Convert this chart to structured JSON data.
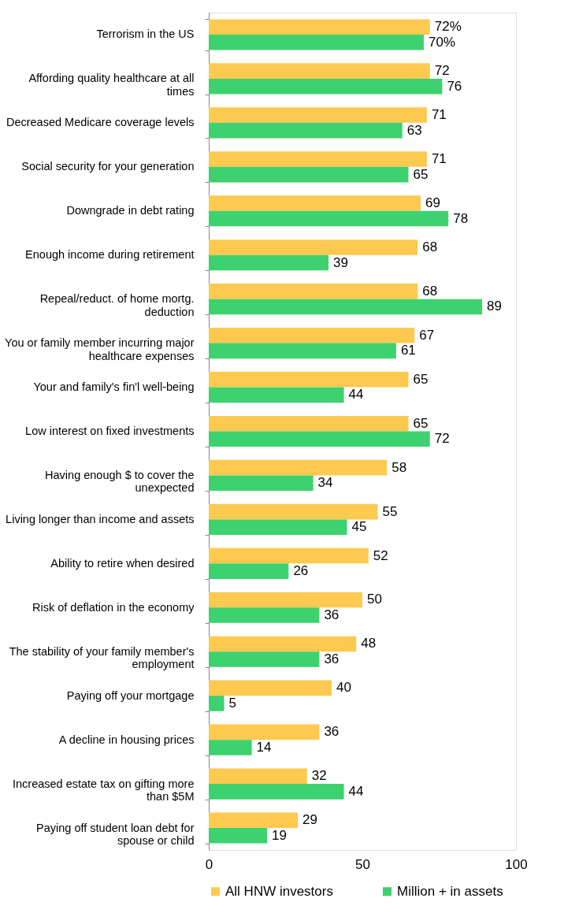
{
  "chart_data": {
    "type": "bar",
    "orientation": "horizontal",
    "categories": [
      "Terrorism in the US",
      "Affording quality healthcare at all times",
      "Decreased Medicare coverage levels",
      "Social security for your generation",
      "Downgrade in debt rating",
      "Enough income during retirement",
      "Repeal/reduct. of home mortg. deduction",
      "You or family member incurring major healthcare expenses",
      "Your and family's fin'l well-being",
      "Low interest on fixed investments",
      "Having enough $ to cover the unexpected",
      "Living longer than income and assets",
      "Ability to retire when desired",
      "Risk of deflation in the economy",
      "The stability of your family member's employment",
      "Paying off your mortgage",
      "A decline in housing prices",
      "Increased estate tax on gifting more than $5M",
      "Paying off student loan debt for spouse or child"
    ],
    "series": [
      {
        "name": "All HNW investors",
        "color": "#fec94f",
        "values": [
          72,
          72,
          71,
          71,
          69,
          68,
          68,
          67,
          65,
          65,
          58,
          55,
          52,
          50,
          48,
          40,
          36,
          32,
          29
        ],
        "value_labels": [
          "72%",
          "72",
          "71",
          "71",
          "69",
          "68",
          "68",
          "67",
          "65",
          "65",
          "58",
          "55",
          "52",
          "50",
          "48",
          "40",
          "36",
          "32",
          "29"
        ]
      },
      {
        "name": "Million + in assets",
        "color": "#3dd16f",
        "values": [
          70,
          76,
          63,
          65,
          78,
          39,
          89,
          61,
          44,
          72,
          34,
          45,
          26,
          36,
          36,
          5,
          14,
          44,
          19
        ],
        "value_labels": [
          "70%",
          "76",
          "63",
          "65",
          "78",
          "39",
          "89",
          "61",
          "44",
          "72",
          "34",
          "45",
          "26",
          "36",
          "36",
          "5",
          "14",
          "44",
          "19"
        ]
      }
    ],
    "xlim": [
      0,
      100
    ],
    "xticks": [
      0,
      50,
      100
    ],
    "grid": false,
    "legend": "bottom"
  }
}
